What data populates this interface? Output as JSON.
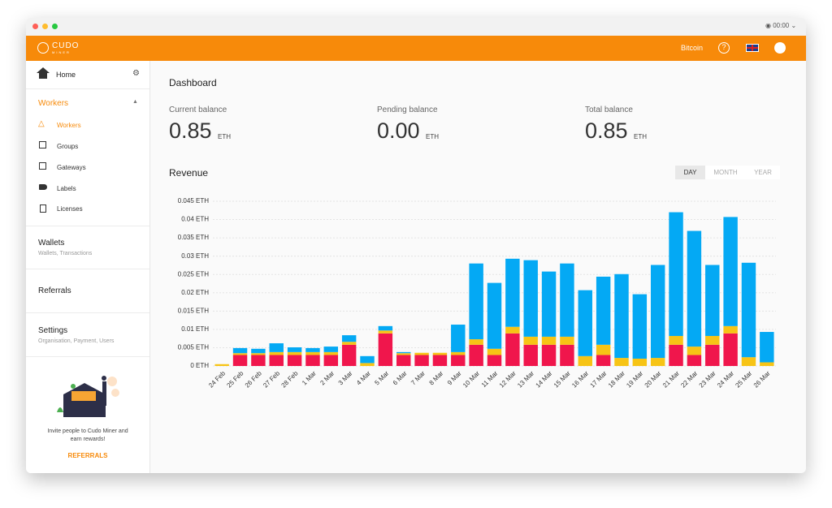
{
  "window": {
    "clock": "00:00"
  },
  "header": {
    "logo": "CUDO",
    "logo_sub": "MINER",
    "currency": "Bitcoin"
  },
  "sidebar": {
    "home": "Home",
    "workers_section": "Workers",
    "items": [
      "Workers",
      "Groups",
      "Gateways",
      "Labels",
      "Licenses"
    ],
    "wallets": {
      "title": "Wallets",
      "subtitle": "Wallets, Transactions"
    },
    "referrals": "Referrals",
    "settings": {
      "title": "Settings",
      "subtitle": "Organisation, Payment, Users"
    },
    "invite": "Invite people to Cudo Miner and earn rewards!",
    "invite_link": "REFERRALS"
  },
  "dashboard": {
    "title": "Dashboard",
    "balances": [
      {
        "label": "Current balance",
        "value": "0.85",
        "unit": "ETH"
      },
      {
        "label": "Pending balance",
        "value": "0.00",
        "unit": "ETH"
      },
      {
        "label": "Total balance",
        "value": "0.85",
        "unit": "ETH"
      }
    ],
    "revenue_title": "Revenue",
    "tabs": [
      "DAY",
      "MONTH",
      "YEAR"
    ]
  },
  "chart_data": {
    "type": "bar",
    "stacked": true,
    "grid": true,
    "categories": [
      "24 Feb",
      "25 Feb",
      "26 Feb",
      "27 Feb",
      "28 Feb",
      "1 Mar",
      "2 Mar",
      "3 Mar",
      "4 Mar",
      "5 Mar",
      "6 Mar",
      "7 Mar",
      "8 Mar",
      "9 Mar",
      "10 Mar",
      "11 Mar",
      "12 Mar",
      "13 Mar",
      "14 Mar",
      "15 Mar",
      "16 Mar",
      "17 Mar",
      "18 Mar",
      "19 Mar",
      "20 Mar",
      "21 Mar",
      "22 Mar",
      "23 Mar",
      "24 Mar",
      "25 Mar",
      "26 Mar"
    ],
    "series": [
      {
        "color": "#f0164c",
        "values": [
          0,
          0.003,
          0.003,
          0.003,
          0.003,
          0.003,
          0.003,
          0.0058,
          0,
          0.0089,
          0.003,
          0.003,
          0.003,
          0.003,
          0.0058,
          0.003,
          0.0089,
          0.0058,
          0.0058,
          0.0058,
          0,
          0.003,
          0,
          0,
          0,
          0.0058,
          0.003,
          0.0058,
          0.0089,
          0,
          0
        ]
      },
      {
        "color": "#f7c415",
        "values": [
          0.0005,
          0.0005,
          0.0005,
          0.0008,
          0.0008,
          0.0008,
          0.0008,
          0.0008,
          0.0008,
          0.0008,
          0.0005,
          0.0006,
          0.0006,
          0.0008,
          0.0015,
          0.0017,
          0.0018,
          0.0022,
          0.0022,
          0.0022,
          0.0027,
          0.0028,
          0.0022,
          0.002,
          0.0022,
          0.0024,
          0.0023,
          0.0024,
          0.002,
          0.0024,
          0.001
        ]
      },
      {
        "color": "#04a9f4",
        "values": [
          0,
          0.0014,
          0.0012,
          0.0024,
          0.0013,
          0.0011,
          0.0015,
          0.0018,
          0.0019,
          0.0012,
          0.0003,
          0,
          0,
          0.0075,
          0.0207,
          0.018,
          0.0186,
          0.0209,
          0.0178,
          0.02,
          0.018,
          0.0186,
          0.0229,
          0.0176,
          0.0254,
          0.0338,
          0.0316,
          0.0194,
          0.0298,
          0.0258,
          0.0083
        ]
      }
    ],
    "ylim": [
      0,
      0.045
    ],
    "yticks": [
      {
        "value": 0,
        "label": "0 ETH"
      },
      {
        "value": 0.005,
        "label": "0.005 ETH"
      },
      {
        "value": 0.01,
        "label": "0.01 ETH"
      },
      {
        "value": 0.015,
        "label": "0.015 ETH"
      },
      {
        "value": 0.02,
        "label": "0.02 ETH"
      },
      {
        "value": 0.025,
        "label": "0.025 ETH"
      },
      {
        "value": 0.03,
        "label": "0.03 ETH"
      },
      {
        "value": 0.035,
        "label": "0.035 ETH"
      },
      {
        "value": 0.04,
        "label": "0.04 ETH"
      },
      {
        "value": 0.045,
        "label": "0.045 ETH"
      }
    ]
  }
}
